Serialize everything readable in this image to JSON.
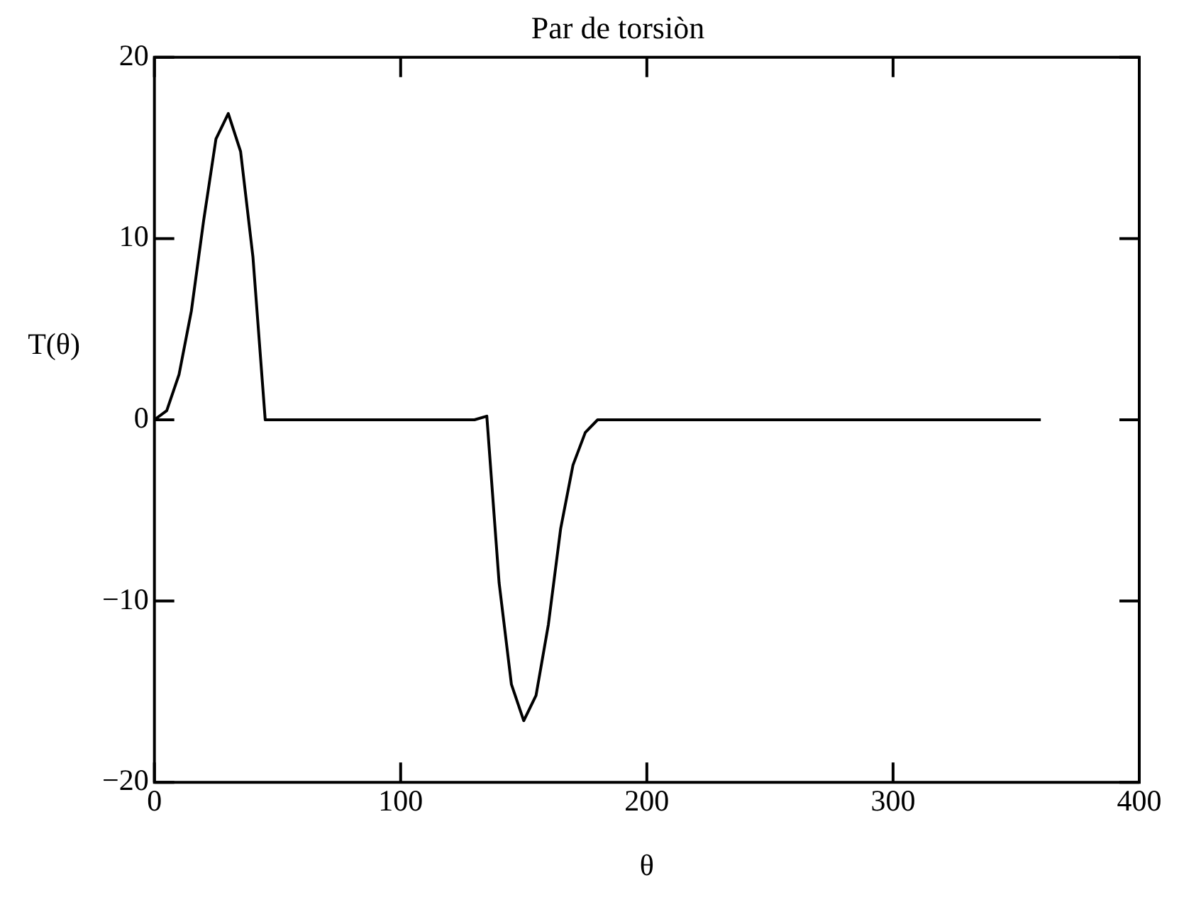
{
  "chart_data": {
    "type": "line",
    "title": "Par de torsiòn",
    "xlabel": "θ",
    "ylabel": "T(θ)",
    "x": [
      0,
      5,
      10,
      15,
      20,
      25,
      30,
      35,
      40,
      45,
      50,
      100,
      130,
      135,
      140,
      145,
      150,
      155,
      160,
      165,
      170,
      175,
      180,
      200,
      300,
      360
    ],
    "series": [
      {
        "color": "#000000",
        "values": [
          0,
          0.5,
          2.5,
          6,
          11,
          15.5,
          16.9,
          14.8,
          9,
          0,
          0,
          0,
          0,
          0.2,
          -9,
          -14.6,
          -16.6,
          -15.2,
          -11.3,
          -6,
          -2.5,
          -0.7,
          0,
          0,
          0,
          0
        ]
      }
    ],
    "xlim": [
      0,
      400
    ],
    "xticks": [
      0,
      100,
      200,
      300,
      400
    ],
    "ylim": [
      -20,
      20
    ],
    "yticks": [
      -20,
      -10,
      0,
      10,
      20
    ],
    "grid": false,
    "legend": false,
    "marker": "none",
    "line_style": "solid"
  }
}
